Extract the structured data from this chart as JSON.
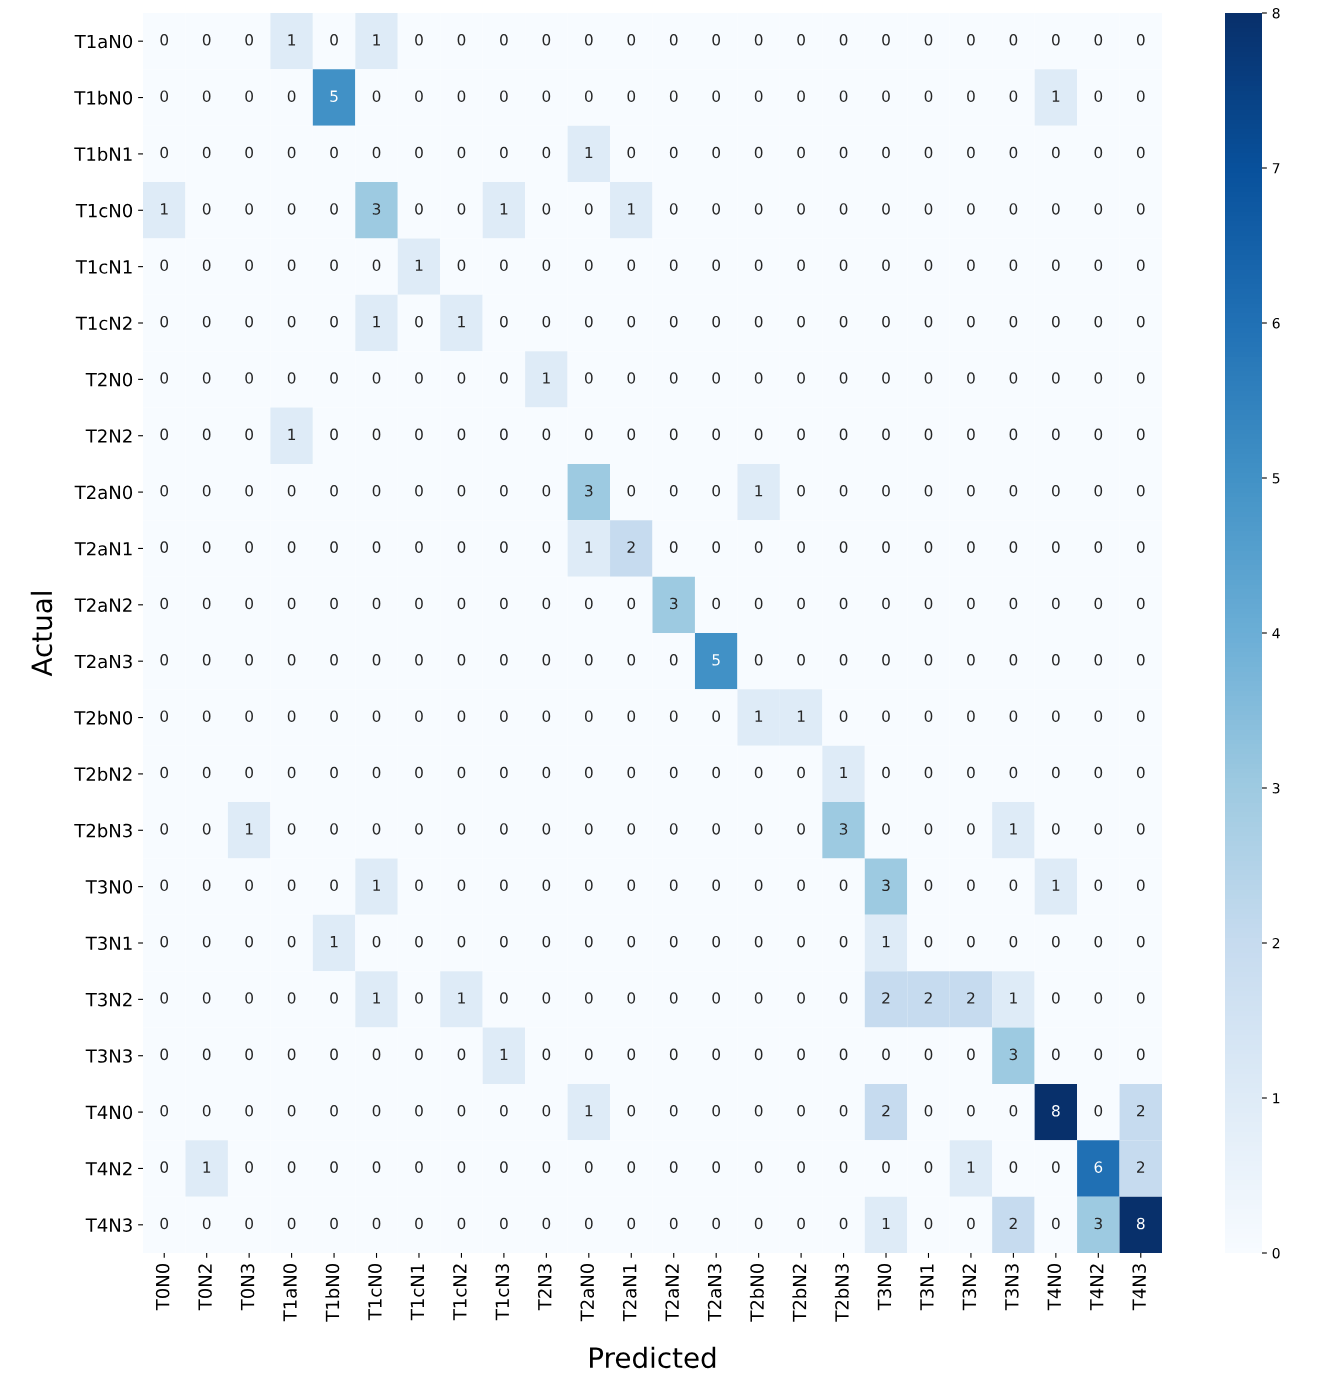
{
  "chart_data": {
    "type": "heatmap",
    "xlabel": "Predicted",
    "ylabel": "Actual",
    "categories": [
      "T0N0",
      "T0N2",
      "T0N3",
      "T1aN0",
      "T1bN0",
      "T1cN0",
      "T1cN1",
      "T1cN2",
      "T1cN3",
      "T2N3",
      "T2aN0",
      "T2aN1",
      "T2aN2",
      "T2aN3",
      "T2bN0",
      "T2bN2",
      "T2bN3",
      "T3N0",
      "T3N1",
      "T3N2",
      "T3N3",
      "T4N0",
      "T4N2",
      "T4N3"
    ],
    "y_categories": [
      "T1aN0",
      "T1bN0",
      "T1bN1",
      "T1cN0",
      "T1cN1",
      "T1cN2",
      "T2N0",
      "T2N2",
      "T2aN0",
      "T2aN1",
      "T2aN2",
      "T2aN3",
      "T2bN0",
      "T2bN2",
      "T2bN3",
      "T3N0",
      "T3N1",
      "T3N2",
      "T3N3",
      "T4N0",
      "T4N2",
      "T4N3"
    ],
    "cells": [
      [
        0,
        0,
        0,
        1,
        0,
        1,
        0,
        0,
        0,
        0,
        0,
        0,
        0,
        0,
        0,
        0,
        0,
        0,
        0,
        0,
        0,
        0,
        0,
        0
      ],
      [
        0,
        0,
        0,
        0,
        5,
        0,
        0,
        0,
        0,
        0,
        0,
        0,
        0,
        0,
        0,
        0,
        0,
        0,
        0,
        0,
        0,
        1,
        0,
        0
      ],
      [
        0,
        0,
        0,
        0,
        0,
        0,
        0,
        0,
        0,
        0,
        1,
        0,
        0,
        0,
        0,
        0,
        0,
        0,
        0,
        0,
        0,
        0,
        0,
        0
      ],
      [
        1,
        0,
        0,
        0,
        0,
        3,
        0,
        0,
        1,
        0,
        0,
        1,
        0,
        0,
        0,
        0,
        0,
        0,
        0,
        0,
        0,
        0,
        0,
        0
      ],
      [
        0,
        0,
        0,
        0,
        0,
        0,
        1,
        0,
        0,
        0,
        0,
        0,
        0,
        0,
        0,
        0,
        0,
        0,
        0,
        0,
        0,
        0,
        0,
        0
      ],
      [
        0,
        0,
        0,
        0,
        0,
        1,
        0,
        1,
        0,
        0,
        0,
        0,
        0,
        0,
        0,
        0,
        0,
        0,
        0,
        0,
        0,
        0,
        0,
        0
      ],
      [
        0,
        0,
        0,
        0,
        0,
        0,
        0,
        0,
        0,
        1,
        0,
        0,
        0,
        0,
        0,
        0,
        0,
        0,
        0,
        0,
        0,
        0,
        0,
        0
      ],
      [
        0,
        0,
        0,
        1,
        0,
        0,
        0,
        0,
        0,
        0,
        0,
        0,
        0,
        0,
        0,
        0,
        0,
        0,
        0,
        0,
        0,
        0,
        0,
        0
      ],
      [
        0,
        0,
        0,
        0,
        0,
        0,
        0,
        0,
        0,
        0,
        3,
        0,
        0,
        0,
        1,
        0,
        0,
        0,
        0,
        0,
        0,
        0,
        0,
        0
      ],
      [
        0,
        0,
        0,
        0,
        0,
        0,
        0,
        0,
        0,
        0,
        1,
        2,
        0,
        0,
        0,
        0,
        0,
        0,
        0,
        0,
        0,
        0,
        0,
        0
      ],
      [
        0,
        0,
        0,
        0,
        0,
        0,
        0,
        0,
        0,
        0,
        0,
        0,
        3,
        0,
        0,
        0,
        0,
        0,
        0,
        0,
        0,
        0,
        0,
        0
      ],
      [
        0,
        0,
        0,
        0,
        0,
        0,
        0,
        0,
        0,
        0,
        0,
        0,
        0,
        5,
        0,
        0,
        0,
        0,
        0,
        0,
        0,
        0,
        0,
        0
      ],
      [
        0,
        0,
        0,
        0,
        0,
        0,
        0,
        0,
        0,
        0,
        0,
        0,
        0,
        0,
        1,
        1,
        0,
        0,
        0,
        0,
        0,
        0,
        0,
        0
      ],
      [
        0,
        0,
        0,
        0,
        0,
        0,
        0,
        0,
        0,
        0,
        0,
        0,
        0,
        0,
        0,
        0,
        1,
        0,
        0,
        0,
        0,
        0,
        0,
        0
      ],
      [
        0,
        0,
        1,
        0,
        0,
        0,
        0,
        0,
        0,
        0,
        0,
        0,
        0,
        0,
        0,
        0,
        3,
        0,
        0,
        0,
        1,
        0,
        0,
        0
      ],
      [
        0,
        0,
        0,
        0,
        0,
        1,
        0,
        0,
        0,
        0,
        0,
        0,
        0,
        0,
        0,
        0,
        0,
        3,
        0,
        0,
        0,
        1,
        0,
        0
      ],
      [
        0,
        0,
        0,
        0,
        1,
        0,
        0,
        0,
        0,
        0,
        0,
        0,
        0,
        0,
        0,
        0,
        0,
        1,
        0,
        0,
        0,
        0,
        0,
        0
      ],
      [
        0,
        0,
        0,
        0,
        0,
        1,
        0,
        1,
        0,
        0,
        0,
        0,
        0,
        0,
        0,
        0,
        0,
        2,
        2,
        2,
        1,
        0,
        0,
        0
      ],
      [
        0,
        0,
        0,
        0,
        0,
        0,
        0,
        0,
        1,
        0,
        0,
        0,
        0,
        0,
        0,
        0,
        0,
        0,
        0,
        0,
        3,
        0,
        0,
        0
      ],
      [
        0,
        0,
        0,
        0,
        0,
        0,
        0,
        0,
        0,
        0,
        1,
        0,
        0,
        0,
        0,
        0,
        0,
        2,
        0,
        0,
        0,
        8,
        0,
        2
      ],
      [
        0,
        1,
        0,
        0,
        0,
        0,
        0,
        0,
        0,
        0,
        0,
        0,
        0,
        0,
        0,
        0,
        0,
        0,
        0,
        1,
        0,
        0,
        6,
        2
      ],
      [
        0,
        0,
        0,
        0,
        0,
        0,
        0,
        0,
        0,
        0,
        0,
        0,
        0,
        0,
        0,
        0,
        0,
        1,
        0,
        0,
        2,
        0,
        3,
        8
      ]
    ],
    "data_labels": true,
    "clim": [
      0,
      8
    ],
    "cticks": [
      0,
      1,
      2,
      3,
      4,
      5,
      6,
      7,
      8
    ]
  }
}
